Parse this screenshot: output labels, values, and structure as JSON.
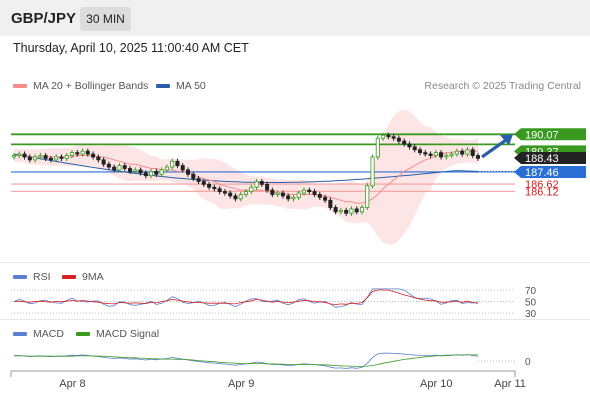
{
  "header": {
    "symbol": "GBP/JPY",
    "timeframe": "30 MIN"
  },
  "timestamp": "Thursday, April 10, 2025 11:00:40 AM CET",
  "legend": {
    "ma20": {
      "label": "MA 20 + Bollinger Bands",
      "color": "#f48c8c"
    },
    "ma50": {
      "label": "MA 50",
      "color": "#2a5ea8"
    }
  },
  "credit": "Research © 2025 Trading Central",
  "rsi_legend": {
    "rsi": {
      "label": "RSI",
      "color": "#5a7fd6"
    },
    "ma9": {
      "label": "9MA",
      "color": "#d42020"
    }
  },
  "macd_legend": {
    "macd": {
      "label": "MACD",
      "color": "#5a7fd6"
    },
    "signal": {
      "label": "MACD Signal",
      "color": "#3a9a20"
    }
  },
  "chart_data": {
    "type": "candlestick",
    "price_axis": {
      "min": 181.5,
      "max": 193.0,
      "labels": [
        {
          "value": 190.07,
          "text": "190.07",
          "bg": "#3a9a20",
          "color": "#ffffff"
        },
        {
          "value": 189.37,
          "text": "189.37",
          "bg": "#3a9a20",
          "color": "#ffffff"
        },
        {
          "value": 188.43,
          "text": "188.43",
          "bg": "#222222",
          "color": "#ffffff"
        },
        {
          "value": 187.46,
          "text": "187.46",
          "bg": "#2a6fd6",
          "color": "#ffffff"
        },
        {
          "value": 186.62,
          "text": "186.62",
          "bg": "",
          "color": "#d42020"
        },
        {
          "value": 186.12,
          "text": "186.12",
          "bg": "",
          "color": "#d42020"
        }
      ]
    },
    "levels": [
      {
        "value": 190.07,
        "color": "#3a9a20",
        "style": "solid"
      },
      {
        "value": 189.37,
        "color": "#3a9a20",
        "style": "solid"
      },
      {
        "value": 187.46,
        "color": "#2a6fd6",
        "style": "solid"
      },
      {
        "value": 186.62,
        "color": "#f0a0a0",
        "style": "solid"
      },
      {
        "value": 186.12,
        "color": "#f0a0a0",
        "style": "solid"
      }
    ],
    "close": [
      188.6,
      188.7,
      188.5,
      188.3,
      188.5,
      188.6,
      188.4,
      188.3,
      188.5,
      188.4,
      188.6,
      188.8,
      188.7,
      188.9,
      188.7,
      188.5,
      188.3,
      188.0,
      187.8,
      187.6,
      187.9,
      187.7,
      187.5,
      187.6,
      187.4,
      187.2,
      187.5,
      187.3,
      187.6,
      187.8,
      188.2,
      187.9,
      187.6,
      187.3,
      187.0,
      186.8,
      186.6,
      186.4,
      186.3,
      186.1,
      186.0,
      185.8,
      185.6,
      185.9,
      186.1,
      186.4,
      186.8,
      186.6,
      186.2,
      185.9,
      186.0,
      185.8,
      185.6,
      185.7,
      186.0,
      186.2,
      186.1,
      185.9,
      185.7,
      185.5,
      185.0,
      184.7,
      184.8,
      184.6,
      184.9,
      184.7,
      185.0,
      186.5,
      188.5,
      189.8,
      190.0,
      189.9,
      189.8,
      189.6,
      189.4,
      189.2,
      189.0,
      188.8,
      188.7,
      188.6,
      188.8,
      188.5,
      188.6,
      188.7,
      188.9,
      188.7,
      189.0,
      188.6,
      188.4
    ],
    "ma20": [
      188.6,
      188.6,
      188.6,
      188.5,
      188.5,
      188.5,
      188.5,
      188.5,
      188.5,
      188.5,
      188.5,
      188.5,
      188.6,
      188.6,
      188.6,
      188.6,
      188.5,
      188.5,
      188.4,
      188.3,
      188.2,
      188.1,
      188.0,
      188.0,
      187.9,
      187.8,
      187.7,
      187.7,
      187.6,
      187.6,
      187.6,
      187.5,
      187.5,
      187.4,
      187.3,
      187.1,
      187.0,
      186.9,
      186.8,
      186.6,
      186.5,
      186.4,
      186.3,
      186.2,
      186.2,
      186.2,
      186.2,
      186.2,
      186.1,
      186.1,
      186.0,
      186.0,
      185.9,
      185.9,
      185.9,
      185.9,
      185.9,
      185.9,
      185.8,
      185.8,
      185.7,
      185.6,
      185.5,
      185.4,
      185.4,
      185.3,
      185.3,
      185.4,
      185.6,
      185.9,
      186.3,
      186.6,
      186.9,
      187.2,
      187.5,
      187.7,
      187.9,
      188.1,
      188.3,
      188.4,
      188.6,
      188.7,
      188.8,
      188.8,
      188.9,
      188.9,
      188.9,
      188.9,
      188.9
    ],
    "ma50_start": 188.7,
    "ma50_end": 187.5,
    "projection": {
      "from": 188.5,
      "to": 190.07
    },
    "rsi": {
      "levels": [
        70,
        50,
        30
      ],
      "labels": [
        "70",
        "50",
        "30"
      ]
    },
    "macd": {
      "zero_label": "0"
    },
    "x_axis": {
      "labels": [
        "Apr 8",
        "Apr 9",
        "Apr 10",
        "Apr 11"
      ],
      "positions": [
        3.5,
        35.5,
        72.5,
        86.5
      ]
    }
  }
}
